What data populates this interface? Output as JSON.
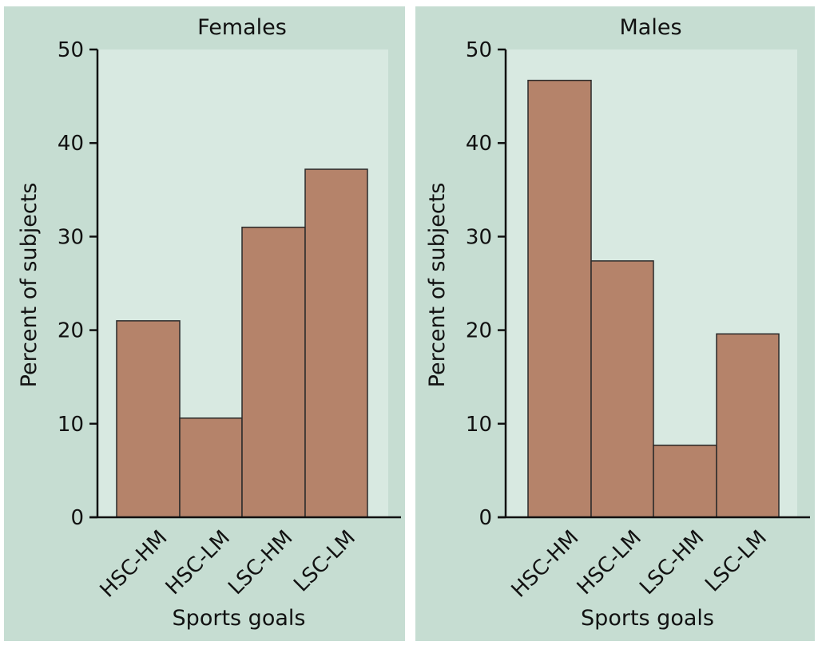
{
  "chart_data": [
    {
      "type": "bar",
      "title": "Females",
      "xlabel": "Sports goals",
      "ylabel": "Percent of subjects",
      "categories": [
        "HSC-HM",
        "HSC-LM",
        "LSC-HM",
        "LSC-LM"
      ],
      "values": [
        21,
        10.6,
        31,
        37.2
      ],
      "ylim": [
        0,
        50
      ],
      "yticks": [
        0,
        10,
        20,
        30,
        40,
        50
      ],
      "grid": false,
      "colors": {
        "bar": "#b5836a",
        "panel": "#c6ddd2",
        "plot": "#d8e9e1"
      }
    },
    {
      "type": "bar",
      "title": "Males",
      "xlabel": "Sports goals",
      "ylabel": "Percent of subjects",
      "categories": [
        "HSC-HM",
        "HSC-LM",
        "LSC-HM",
        "LSC-LM"
      ],
      "values": [
        46.7,
        27.4,
        7.7,
        19.6
      ],
      "ylim": [
        0,
        50
      ],
      "yticks": [
        0,
        10,
        20,
        30,
        40,
        50
      ],
      "grid": false,
      "colors": {
        "bar": "#b5836a",
        "panel": "#c6ddd2",
        "plot": "#d8e9e1"
      }
    }
  ]
}
